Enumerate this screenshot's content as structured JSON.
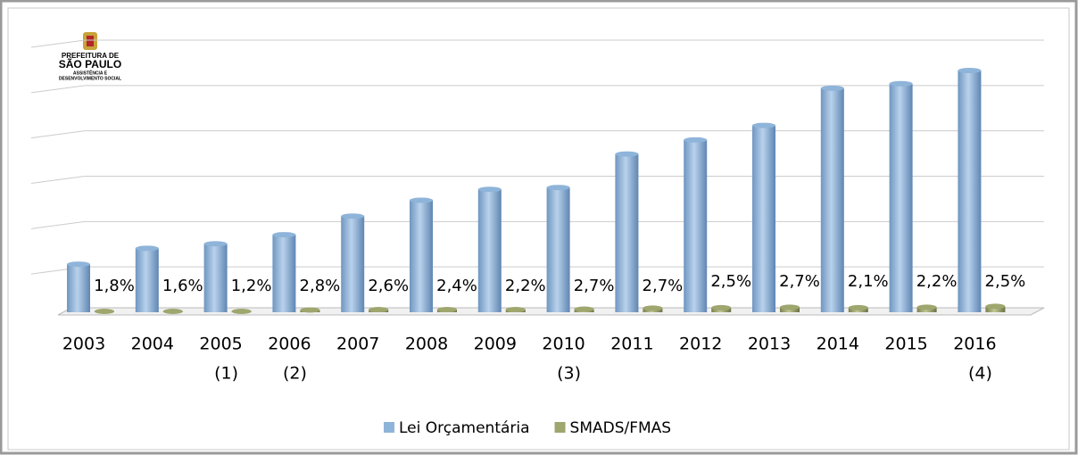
{
  "logo": {
    "lines": [
      "PREFEITURA DE",
      "SÃO PAULO",
      "ASSISTÊNCIA E",
      "DESENVOLVIMENTO SOCIAL"
    ]
  },
  "chart_data": {
    "type": "bar",
    "categories": [
      "2003",
      "2004",
      "2005",
      "2006",
      "2007",
      "2008",
      "2009",
      "2010",
      "2011",
      "2012",
      "2013",
      "2014",
      "2015",
      "2016"
    ],
    "category_notes": [
      null,
      null,
      "(1)",
      "(2)",
      null,
      null,
      null,
      "(3)",
      null,
      null,
      null,
      null,
      null,
      "(4)"
    ],
    "series": [
      {
        "name": "Lei Orçamentária",
        "color": "#8fb4d9",
        "values": [
          1.06,
          1.41,
          1.51,
          1.71,
          2.12,
          2.47,
          2.71,
          2.75,
          3.49,
          3.8,
          4.12,
          4.94,
          5.04,
          5.33
        ]
      },
      {
        "name": "SMADS/FMAS",
        "color": "#9fa66e",
        "values": [
          0.02,
          0.02,
          0.02,
          0.05,
          0.06,
          0.06,
          0.06,
          0.07,
          0.09,
          0.1,
          0.11,
          0.1,
          0.11,
          0.13
        ]
      }
    ],
    "annotations": [
      {
        "value": 1.8,
        "label": "1,8%"
      },
      {
        "value": 1.6,
        "label": "1,6%"
      },
      {
        "value": 1.2,
        "label": "1,2%"
      },
      {
        "value": 2.8,
        "label": "2,8%"
      },
      {
        "value": 2.6,
        "label": "2,6%"
      },
      {
        "value": 2.4,
        "label": "2,4%"
      },
      {
        "value": 2.2,
        "label": "2,2%"
      },
      {
        "value": 2.7,
        "label": "2,7%"
      },
      {
        "value": 2.7,
        "label": "2,7%"
      },
      {
        "value": 2.5,
        "label": "2,5%"
      },
      {
        "value": 2.7,
        "label": "2,7%"
      },
      {
        "value": 2.1,
        "label": "2,1%"
      },
      {
        "value": 2.2,
        "label": "2,2%"
      },
      {
        "value": 2.5,
        "label": "2,5%"
      }
    ],
    "ylim": [
      0,
      6
    ],
    "yticks": [
      0,
      1,
      2,
      3,
      4,
      5,
      6
    ],
    "grid": true,
    "legend": "bottom"
  }
}
